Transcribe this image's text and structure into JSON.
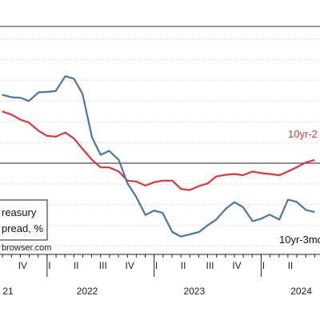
{
  "chart_data": {
    "type": "line",
    "title": "",
    "xlabel": "",
    "ylabel": "",
    "x_tick_labels": [
      {
        "t": 2021.75,
        "label": "IV"
      },
      {
        "t": 2022.0,
        "label": "I"
      },
      {
        "t": 2022.25,
        "label": "II"
      },
      {
        "t": 2022.5,
        "label": "III"
      },
      {
        "t": 2022.75,
        "label": "IV"
      },
      {
        "t": 2023.0,
        "label": "I"
      },
      {
        "t": 2023.25,
        "label": "II"
      },
      {
        "t": 2023.5,
        "label": "III"
      },
      {
        "t": 2023.75,
        "label": "IV"
      },
      {
        "t": 2024.0,
        "label": "I"
      },
      {
        "t": 2024.25,
        "label": "II"
      },
      {
        "t": 2024.5,
        "label": "III"
      }
    ],
    "year_labels": [
      {
        "t": 2021.55,
        "label": "21"
      },
      {
        "t": 2022.375,
        "label": "2022"
      },
      {
        "t": 2023.375,
        "label": "2023"
      },
      {
        "t": 2024.375,
        "label": "2024"
      }
    ],
    "reference_line_y": 0,
    "series": [
      {
        "name": "10yr-2",
        "color": "#d9363e",
        "x": [
          2021.58,
          2021.67,
          2021.75,
          2021.83,
          2021.92,
          2022.0,
          2022.08,
          2022.17,
          2022.25,
          2022.33,
          2022.42,
          2022.5,
          2022.58,
          2022.67,
          2022.75,
          2022.83,
          2022.92,
          2023.0,
          2023.08,
          2023.17,
          2023.25,
          2023.33,
          2023.42,
          2023.5,
          2023.58,
          2023.67,
          2023.75,
          2023.83,
          2023.92,
          2024.0,
          2024.08,
          2024.17,
          2024.25,
          2024.33,
          2024.42,
          2024.5
        ],
        "y": [
          1.25,
          1.17,
          1.05,
          0.98,
          0.78,
          0.66,
          0.64,
          0.74,
          0.6,
          0.35,
          0.08,
          -0.1,
          -0.1,
          -0.2,
          -0.42,
          -0.44,
          -0.54,
          -0.46,
          -0.42,
          -0.42,
          -0.62,
          -0.65,
          -0.55,
          -0.49,
          -0.32,
          -0.28,
          -0.26,
          -0.29,
          -0.2,
          -0.24,
          -0.26,
          -0.29,
          -0.2,
          -0.1,
          0.02,
          0.08
        ],
        "label": "10yr-2"
      },
      {
        "name": "10yr-3mo",
        "color": "#4a76a8",
        "x": [
          2021.58,
          2021.67,
          2021.75,
          2021.83,
          2021.92,
          2022.0,
          2022.08,
          2022.17,
          2022.25,
          2022.33,
          2022.42,
          2022.5,
          2022.58,
          2022.67,
          2022.75,
          2022.83,
          2022.92,
          2023.0,
          2023.08,
          2023.17,
          2023.25,
          2023.33,
          2023.42,
          2023.5,
          2023.58,
          2023.67,
          2023.75,
          2023.83,
          2023.92,
          2024.0,
          2024.08,
          2024.17,
          2024.25,
          2024.33,
          2024.42,
          2024.5
        ],
        "y": [
          1.65,
          1.59,
          1.58,
          1.5,
          1.71,
          1.72,
          1.74,
          2.1,
          2.04,
          1.68,
          0.62,
          0.2,
          0.3,
          0.08,
          -0.48,
          -0.8,
          -1.25,
          -1.14,
          -1.2,
          -1.66,
          -1.77,
          -1.72,
          -1.66,
          -1.5,
          -1.36,
          -1.1,
          -0.94,
          -1.06,
          -1.4,
          -1.34,
          -1.24,
          -1.36,
          -0.88,
          -0.93,
          -1.13,
          -1.18
        ],
        "label": "10yr-3mo"
      }
    ],
    "legend": {
      "lines": [
        "reasury",
        "pread, %"
      ]
    },
    "source": "browser.com",
    "ylim": [
      -2.2,
      3.3
    ],
    "xlim": [
      2021.56,
      2024.55
    ],
    "grid": true
  }
}
